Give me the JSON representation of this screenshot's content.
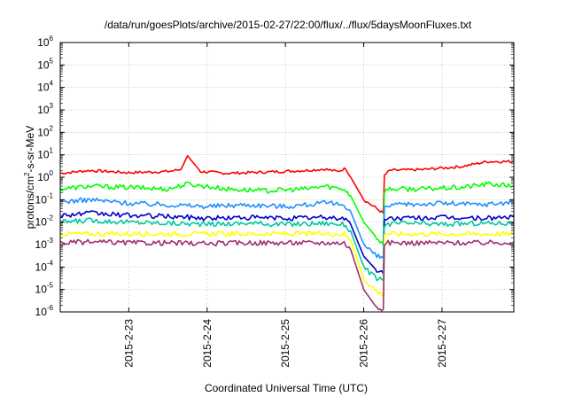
{
  "chart_data": {
    "type": "line",
    "title": "/data/run/goesPlots/archive/2015-02-27/22:00/flux/../flux/5daysMoonFluxes.txt",
    "xlabel": "Coordinated Universal Time (UTC)",
    "ylabel_parts": [
      "protons/cm",
      "2",
      "-s-sr-MeV"
    ],
    "yscale": "log",
    "ylim": [
      1e-06,
      1000000.0
    ],
    "xlim": [
      "2015-02-22T03:00",
      "2015-02-27T22:00"
    ],
    "grid": true,
    "y_ticks": [
      {
        "value": 1e-06,
        "base": "10",
        "exp": "-6"
      },
      {
        "value": 1e-05,
        "base": "10",
        "exp": "-5"
      },
      {
        "value": 0.0001,
        "base": "10",
        "exp": "-4"
      },
      {
        "value": 0.001,
        "base": "10",
        "exp": "-3"
      },
      {
        "value": 0.01,
        "base": "10",
        "exp": "-2"
      },
      {
        "value": 0.1,
        "base": "10",
        "exp": "-1"
      },
      {
        "value": 1,
        "base": "10",
        "exp": "0"
      },
      {
        "value": 10.0,
        "base": "10",
        "exp": "1"
      },
      {
        "value": 100.0,
        "base": "10",
        "exp": "2"
      },
      {
        "value": 1000.0,
        "base": "10",
        "exp": "3"
      },
      {
        "value": 10000.0,
        "base": "10",
        "exp": "4"
      },
      {
        "value": 100000.0,
        "base": "10",
        "exp": "5"
      },
      {
        "value": 1000000.0,
        "base": "10",
        "exp": "6"
      }
    ],
    "x_ticks": [
      {
        "value": "2015-02-23T00:00",
        "label": "2015-2-23"
      },
      {
        "value": "2015-02-24T00:00",
        "label": "2015-2-24"
      },
      {
        "value": "2015-02-25T00:00",
        "label": "2015-2-25"
      },
      {
        "value": "2015-02-26T00:00",
        "label": "2015-2-26"
      },
      {
        "value": "2015-02-27T00:00",
        "label": "2015-2-27"
      }
    ],
    "series": [
      {
        "color": "#ff0000",
        "x": [
          "2015-02-22T03:00",
          "2015-02-22T12:00",
          "2015-02-23T00:00",
          "2015-02-23T12:00",
          "2015-02-23T16:00",
          "2015-02-23T18:00",
          "2015-02-23T22:00",
          "2015-02-24T06:00",
          "2015-02-24T18:00",
          "2015-02-25T06:00",
          "2015-02-25T12:00",
          "2015-02-25T16:00",
          "2015-02-25T18:30",
          "2015-02-25T20:00",
          "2015-02-26T00:00",
          "2015-02-26T04:00",
          "2015-02-26T06:00",
          "2015-02-26T06:20",
          "2015-02-26T08:00",
          "2015-02-26T18:00",
          "2015-02-27T06:00",
          "2015-02-27T14:00",
          "2015-02-27T22:00"
        ],
        "y": [
          1.5,
          2.0,
          1.6,
          1.8,
          2.2,
          9.0,
          1.8,
          1.5,
          1.7,
          2.0,
          2.3,
          1.8,
          2.5,
          1.0,
          0.1,
          0.04,
          0.025,
          1.2,
          2.0,
          2.2,
          3.0,
          5.0,
          5.0
        ]
      },
      {
        "color": "#00ff00",
        "x": [
          "2015-02-22T03:00",
          "2015-02-22T12:00",
          "2015-02-23T00:00",
          "2015-02-23T12:00",
          "2015-02-23T18:00",
          "2015-02-24T06:00",
          "2015-02-24T18:00",
          "2015-02-25T06:00",
          "2015-02-25T12:00",
          "2015-02-25T18:00",
          "2015-02-25T20:00",
          "2015-02-26T00:00",
          "2015-02-26T04:00",
          "2015-02-26T06:00",
          "2015-02-26T06:20",
          "2015-02-26T08:00",
          "2015-02-26T18:00",
          "2015-02-27T06:00",
          "2015-02-27T14:00",
          "2015-02-27T22:00"
        ],
        "y": [
          0.3,
          0.4,
          0.35,
          0.3,
          0.5,
          0.3,
          0.25,
          0.3,
          0.4,
          0.3,
          0.15,
          0.01,
          0.002,
          0.001,
          0.25,
          0.3,
          0.3,
          0.35,
          0.5,
          0.4
        ]
      },
      {
        "color": "#1e90ff",
        "x": [
          "2015-02-22T03:00",
          "2015-02-22T12:00",
          "2015-02-23T00:00",
          "2015-02-23T12:00",
          "2015-02-24T00:00",
          "2015-02-24T12:00",
          "2015-02-25T00:00",
          "2015-02-25T12:00",
          "2015-02-25T18:00",
          "2015-02-25T20:00",
          "2015-02-26T00:00",
          "2015-02-26T04:00",
          "2015-02-26T06:00",
          "2015-02-26T06:20",
          "2015-02-26T12:00",
          "2015-02-27T00:00",
          "2015-02-27T12:00",
          "2015-02-27T22:00"
        ],
        "y": [
          0.08,
          0.1,
          0.07,
          0.06,
          0.05,
          0.06,
          0.05,
          0.07,
          0.06,
          0.03,
          0.001,
          0.0003,
          0.00025,
          0.05,
          0.06,
          0.07,
          0.06,
          0.08
        ]
      },
      {
        "color": "#0000cd",
        "x": [
          "2015-02-22T03:00",
          "2015-02-22T12:00",
          "2015-02-23T00:00",
          "2015-02-23T12:00",
          "2015-02-24T00:00",
          "2015-02-24T12:00",
          "2015-02-25T00:00",
          "2015-02-25T12:00",
          "2015-02-25T18:00",
          "2015-02-25T20:00",
          "2015-02-26T00:00",
          "2015-02-26T04:00",
          "2015-02-26T06:00",
          "2015-02-26T06:20",
          "2015-02-26T12:00",
          "2015-02-27T00:00",
          "2015-02-27T12:00",
          "2015-02-27T22:00"
        ],
        "y": [
          0.02,
          0.025,
          0.02,
          0.018,
          0.015,
          0.016,
          0.015,
          0.016,
          0.015,
          0.008,
          0.0003,
          7e-05,
          5e-05,
          0.015,
          0.015,
          0.016,
          0.015,
          0.017
        ]
      },
      {
        "color": "#00c8a0",
        "x": [
          "2015-02-22T03:00",
          "2015-02-22T12:00",
          "2015-02-23T00:00",
          "2015-02-23T12:00",
          "2015-02-24T00:00",
          "2015-02-24T12:00",
          "2015-02-25T00:00",
          "2015-02-25T12:00",
          "2015-02-25T18:00",
          "2015-02-25T20:00",
          "2015-02-26T00:00",
          "2015-02-26T04:00",
          "2015-02-26T06:00",
          "2015-02-26T06:20",
          "2015-02-26T12:00",
          "2015-02-27T00:00",
          "2015-02-27T12:00",
          "2015-02-27T22:00"
        ],
        "y": [
          0.01,
          0.012,
          0.01,
          0.009,
          0.008,
          0.009,
          0.008,
          0.009,
          0.008,
          0.004,
          0.0001,
          3e-05,
          2.5e-05,
          0.008,
          0.009,
          0.008,
          0.009,
          0.009
        ]
      },
      {
        "color": "#ffff00",
        "x": [
          "2015-02-22T03:00",
          "2015-02-22T12:00",
          "2015-02-23T00:00",
          "2015-02-23T12:00",
          "2015-02-24T00:00",
          "2015-02-24T12:00",
          "2015-02-25T00:00",
          "2015-02-25T12:00",
          "2015-02-25T18:00",
          "2015-02-25T20:00",
          "2015-02-26T00:00",
          "2015-02-26T04:00",
          "2015-02-26T06:00",
          "2015-02-26T06:20",
          "2015-02-26T12:00",
          "2015-02-27T00:00",
          "2015-02-27T12:00",
          "2015-02-27T22:00"
        ],
        "y": [
          0.003,
          0.003,
          0.003,
          0.003,
          0.003,
          0.003,
          0.003,
          0.003,
          0.003,
          0.0015,
          3e-05,
          8e-06,
          6e-06,
          0.003,
          0.003,
          0.003,
          0.003,
          0.003
        ]
      },
      {
        "color": "#a0306e",
        "x": [
          "2015-02-22T03:00",
          "2015-02-22T12:00",
          "2015-02-23T00:00",
          "2015-02-23T12:00",
          "2015-02-24T00:00",
          "2015-02-24T12:00",
          "2015-02-25T00:00",
          "2015-02-25T12:00",
          "2015-02-25T18:00",
          "2015-02-25T20:00",
          "2015-02-26T00:00",
          "2015-02-26T04:00",
          "2015-02-26T06:00",
          "2015-02-26T06:20",
          "2015-02-26T12:00",
          "2015-02-27T00:00",
          "2015-02-27T12:00",
          "2015-02-27T22:00"
        ],
        "y": [
          0.0012,
          0.0013,
          0.0012,
          0.0012,
          0.0011,
          0.0012,
          0.0012,
          0.0012,
          0.0012,
          0.0006,
          1e-05,
          1.5e-06,
          1.3e-06,
          0.0012,
          0.0012,
          0.0012,
          0.0012,
          0.0013
        ]
      }
    ]
  }
}
